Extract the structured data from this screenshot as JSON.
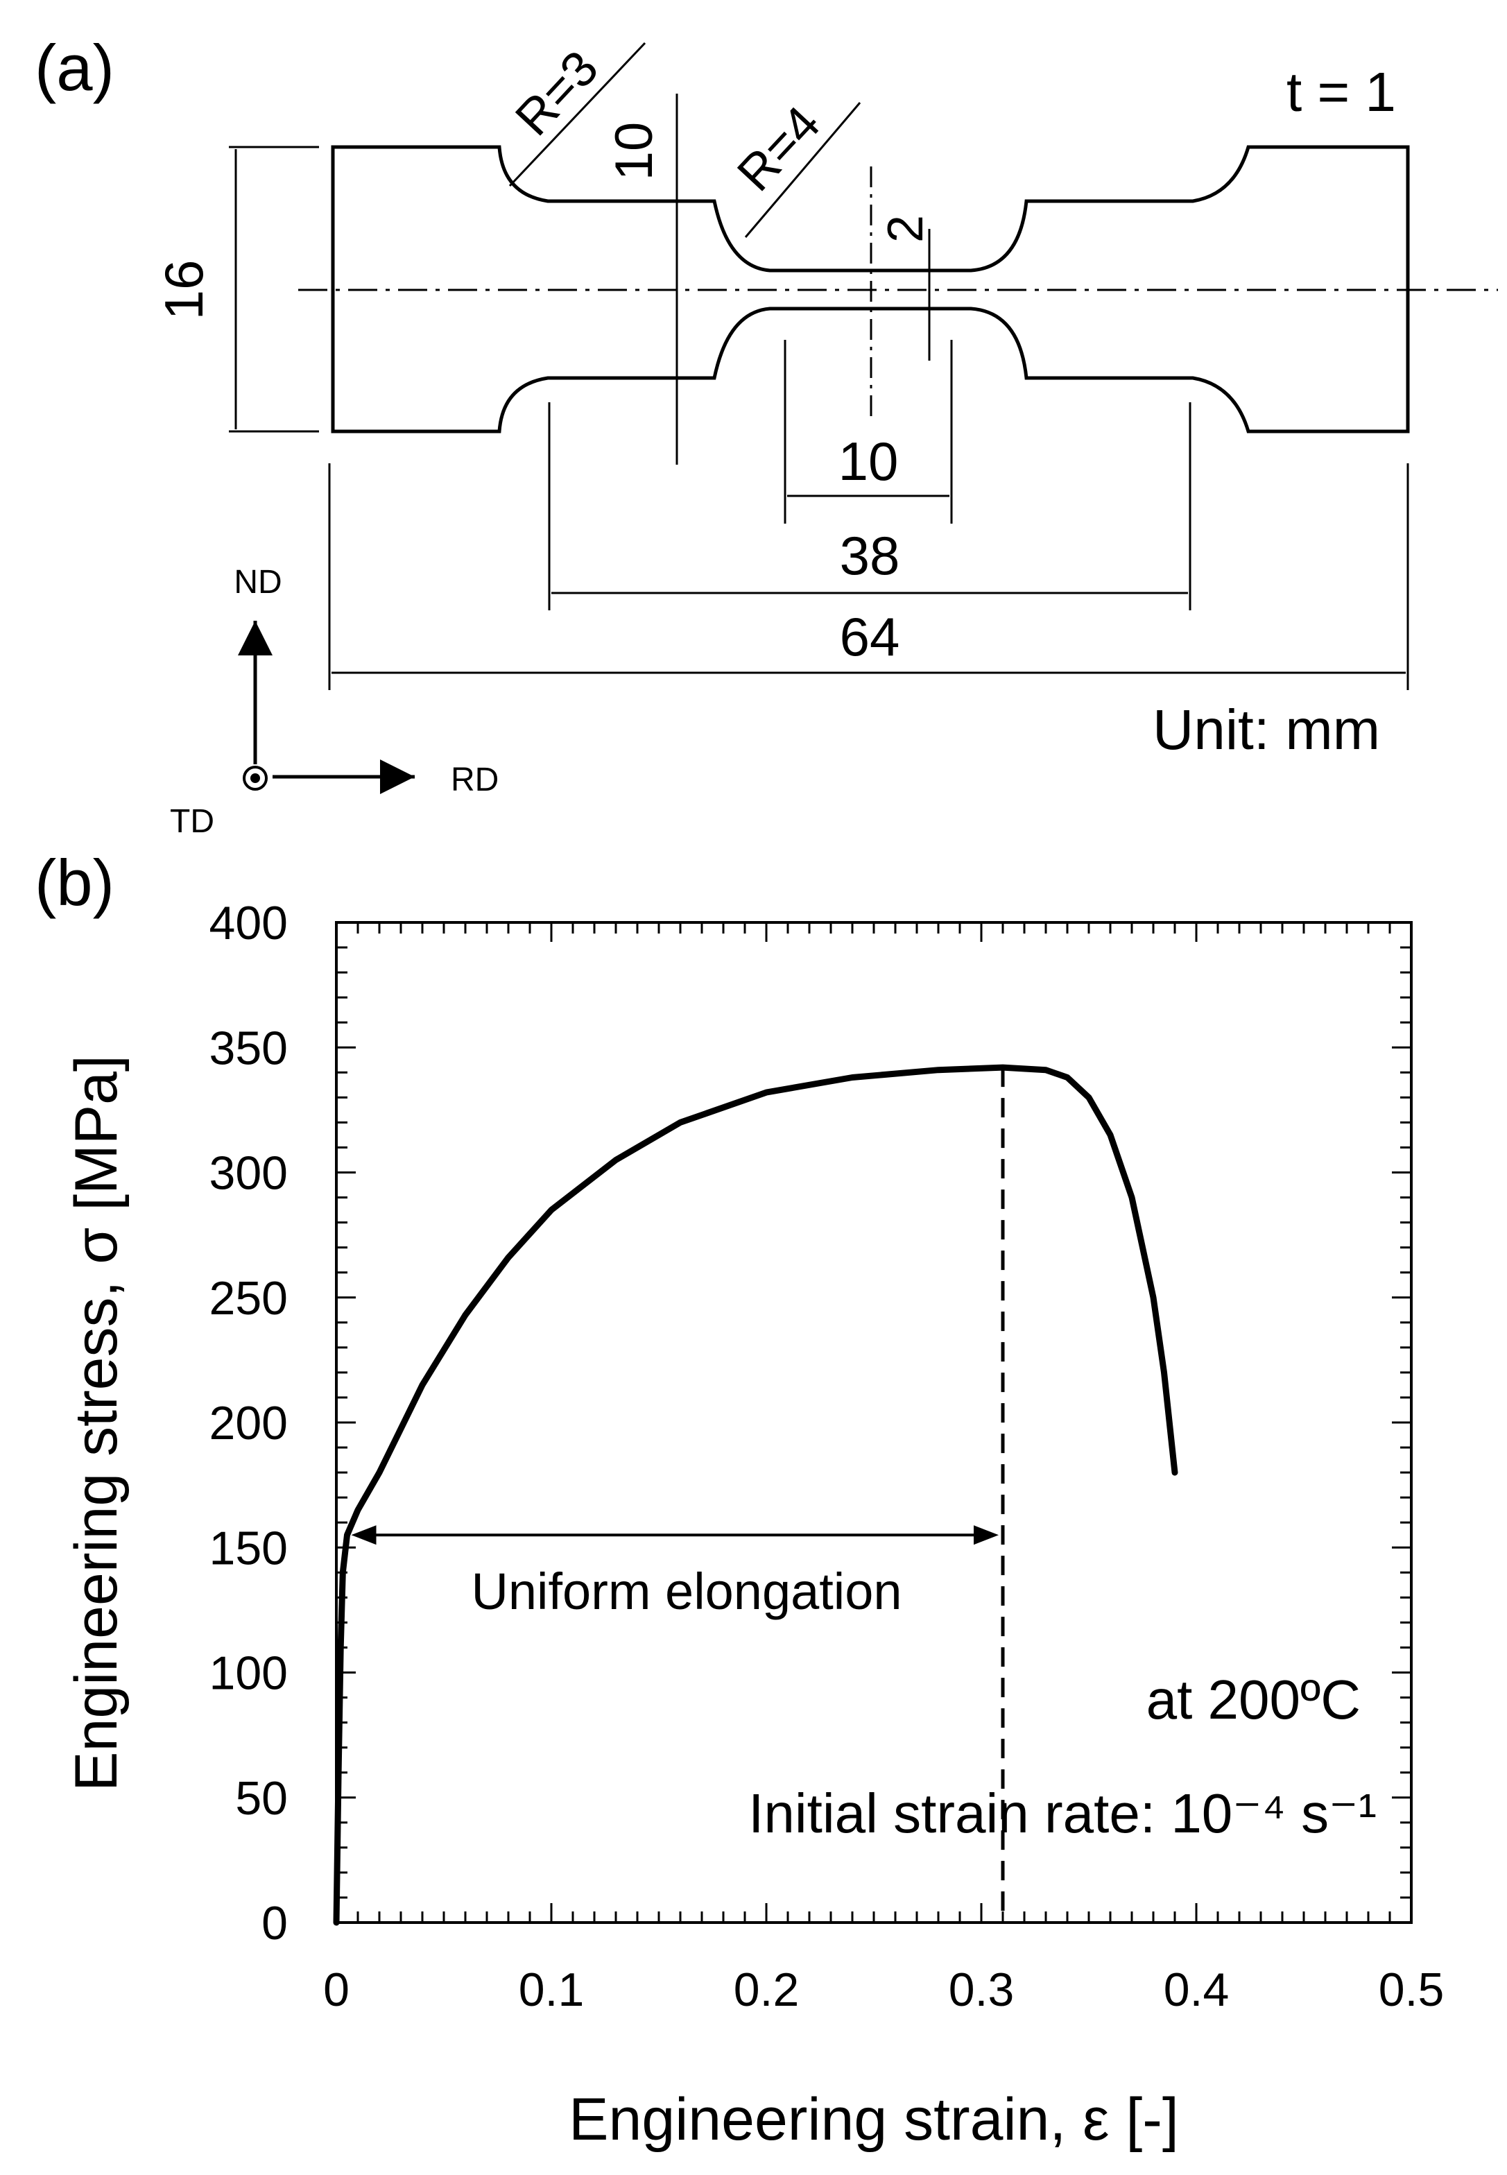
{
  "panel_a": {
    "label": "(a)",
    "thickness": "t = 1",
    "unit": "Unit: mm",
    "dims": {
      "r3": "R=3",
      "r4": "R=4",
      "d10_vertical": "10",
      "d2": "2",
      "d16": "16",
      "d10_horizontal": "10",
      "d38": "38",
      "d64": "64"
    },
    "axes": {
      "nd": "ND",
      "rd": "RD",
      "td": "TD"
    }
  },
  "panel_b": {
    "label": "(b)",
    "annotation_temp": "at 200ºC",
    "annotation_rate": "Initial strain rate: 10⁻⁴ s⁻¹",
    "uniform_label": "Uniform elongation"
  },
  "chart_data": {
    "type": "line",
    "xlabel": "Engineering strain, ε [-]",
    "ylabel": "Engineering stress, σ [MPa]",
    "xlim": [
      0,
      0.5
    ],
    "ylim": [
      0,
      400
    ],
    "xticks": [
      "0",
      "0.1",
      "0.2",
      "0.3",
      "0.4",
      "0.5"
    ],
    "yticks": [
      "0",
      "50",
      "100",
      "150",
      "200",
      "250",
      "300",
      "350",
      "400"
    ],
    "grid": false,
    "series": [
      {
        "x": [
          0.0,
          0.001,
          0.002,
          0.003,
          0.005,
          0.01,
          0.02,
          0.04,
          0.06,
          0.08,
          0.1,
          0.13,
          0.16,
          0.2,
          0.24,
          0.28,
          0.31,
          0.33,
          0.34,
          0.35,
          0.36,
          0.37,
          0.38,
          0.385,
          0.39
        ],
        "y": [
          0,
          60,
          110,
          140,
          155,
          165,
          180,
          215,
          243,
          266,
          285,
          305,
          320,
          332,
          338,
          341,
          342,
          341,
          338,
          330,
          315,
          290,
          250,
          220,
          180
        ]
      }
    ],
    "uniform_elongation_strain": 0.31,
    "uniform_arrow_stress": 155,
    "guide_color": "#2020e0"
  }
}
